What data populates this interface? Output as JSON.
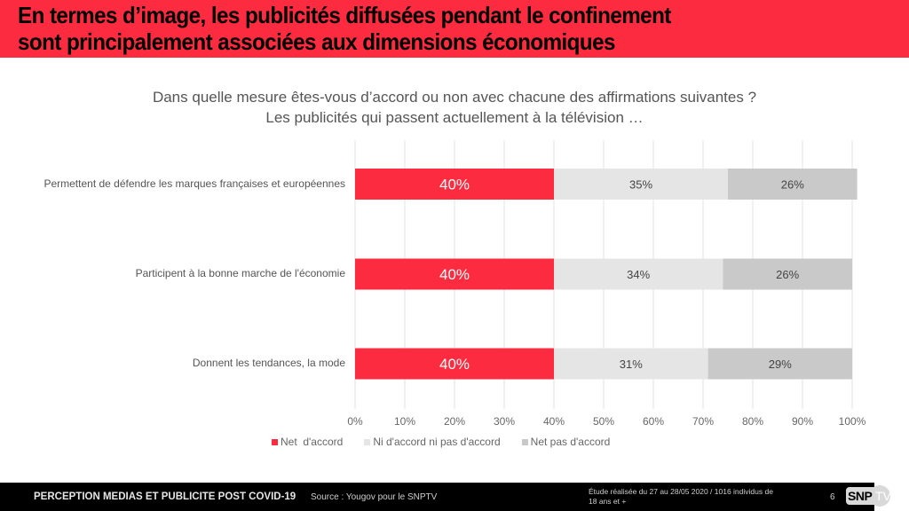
{
  "header": {
    "title_line1": "En termes d’image, les publicités diffusées pendant le confinement",
    "title_line2": "sont principalement associées aux dimensions économiques"
  },
  "question": {
    "line1": "Dans quelle mesure êtes-vous d’accord ou non avec chacune des affirmations suivantes ?",
    "line2": "Les publicités qui passent actuellement à la télévision …"
  },
  "colors": {
    "accent": "#fc2b3f",
    "neutral": "#e5e5e5",
    "disagree": "#c9c9c9",
    "footer_bg": "#000000"
  },
  "chart_data": {
    "type": "bar",
    "orientation": "horizontal",
    "stacked": true,
    "title": "",
    "xlabel": "",
    "ylabel": "",
    "xlim": [
      0,
      100
    ],
    "x_ticks": [
      "0%",
      "10%",
      "20%",
      "30%",
      "40%",
      "50%",
      "60%",
      "70%",
      "80%",
      "90%",
      "100%"
    ],
    "grid": true,
    "legend_position": "bottom",
    "categories": [
      "Permettent de défendre les marques françaises et européennes",
      "Participent à la bonne marche de l'économie",
      "Donnent les tendances, la mode"
    ],
    "series": [
      {
        "name": "Net  d'accord",
        "color": "#fc2b3f",
        "label_color": "#ffffff",
        "values": [
          40,
          40,
          40
        ]
      },
      {
        "name": "Ni d'accord ni pas d'accord",
        "color": "#e5e5e5",
        "label_color": "#444444",
        "values": [
          35,
          34,
          31
        ]
      },
      {
        "name": "Net pas d'accord",
        "color": "#c9c9c9",
        "label_color": "#444444",
        "values": [
          26,
          26,
          29
        ]
      }
    ],
    "value_suffix": "%"
  },
  "footer": {
    "title": "PERCEPTION MEDIAS ET PUBLICITE POST COVID-19",
    "source": "Source : Yougov pour le SNPTV",
    "study_line1": "Étude réalisée du 27 au 28/05 2020 / 1016 individus de",
    "study_line2": "18 ans et +",
    "page_number": "6",
    "logo_text": "SNP",
    "logo_tv": "TV"
  }
}
